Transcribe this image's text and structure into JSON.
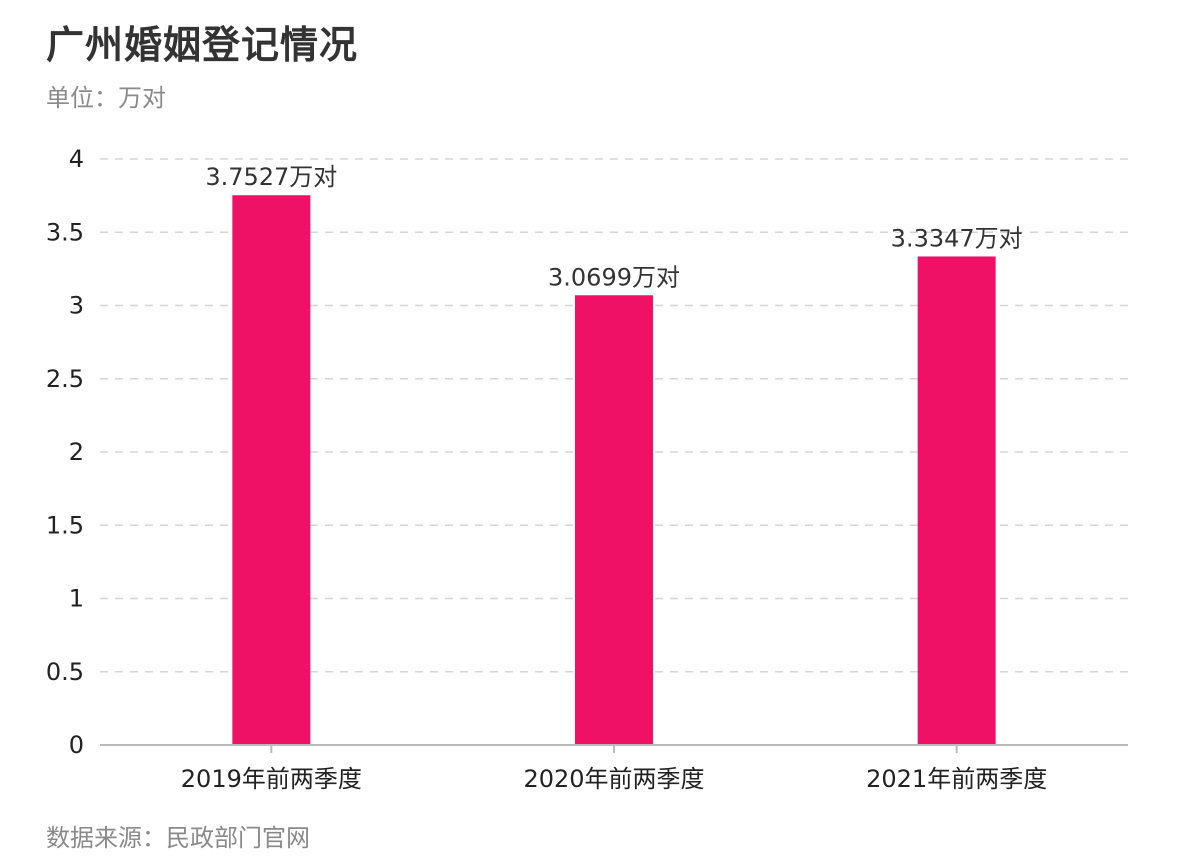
{
  "header": {
    "title": "广州婚姻登记情况",
    "unit": "单位：万对"
  },
  "footer": {
    "source": "数据来源：民政部门官网"
  },
  "chart_data": {
    "type": "bar",
    "title": "广州婚姻登记情况",
    "xlabel": "",
    "ylabel": "",
    "categories": [
      "2019年前两季度",
      "2020年前两季度",
      "2021年前两季度"
    ],
    "values": [
      3.7527,
      3.0699,
      3.3347
    ],
    "data_labels": [
      "3.7527万对",
      "3.0699万对",
      "3.3347万对"
    ],
    "yticks": [
      "0",
      "0.5",
      "1",
      "1.5",
      "2",
      "2.5",
      "3",
      "3.5",
      "4"
    ],
    "ylim": [
      0,
      4
    ],
    "grid": true,
    "legend": "none",
    "colors": {
      "bar": "#ee1166",
      "grid": "#d6d6d6",
      "axis": "#bbbbbb"
    }
  }
}
